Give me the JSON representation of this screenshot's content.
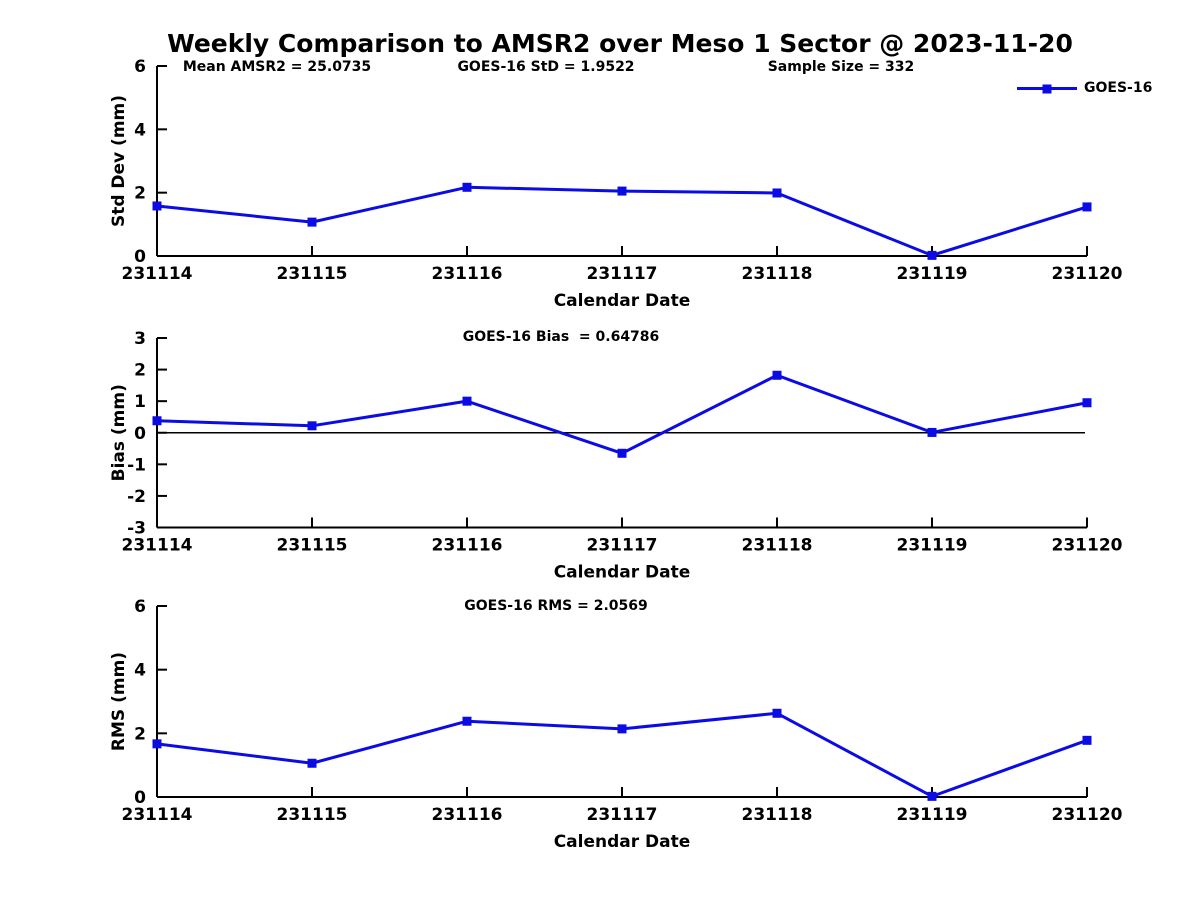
{
  "figure": {
    "title": "Weekly Comparison to AMSR2 over Meso 1 Sector @ 2023-11-20",
    "colors": {
      "line": "#0b0be6",
      "axis": "#000000",
      "zero_line": "#000000",
      "background": "#ffffff"
    }
  },
  "chart_data": [
    {
      "type": "line",
      "xlabel": "Calendar Date",
      "ylabel": "Std Dev (mm)",
      "categories": [
        "231114",
        "231115",
        "231116",
        "231117",
        "231118",
        "231119",
        "231120"
      ],
      "series": [
        {
          "name": "GOES-16",
          "values": [
            1.58,
            1.07,
            2.17,
            2.05,
            1.99,
            0.02,
            1.55
          ]
        }
      ],
      "ylim": [
        0,
        6
      ],
      "yticks": [
        0,
        2,
        4,
        6
      ],
      "grid": false,
      "legend_position": "top-right",
      "annotations": {
        "mean_amsr2": "Mean AMSR2 = 25.0735",
        "goes16_std": "GOES-16 StD = 1.9522",
        "sample_size": "Sample Size = 332"
      }
    },
    {
      "type": "line",
      "xlabel": "Calendar Date",
      "ylabel": "Bias (mm)",
      "categories": [
        "231114",
        "231115",
        "231116",
        "231117",
        "231118",
        "231119",
        "231120"
      ],
      "series": [
        {
          "name": "GOES-16",
          "values": [
            0.38,
            0.22,
            1.0,
            -0.65,
            1.82,
            0.01,
            0.95
          ]
        }
      ],
      "ylim": [
        -3,
        3
      ],
      "yticks": [
        -3,
        -2,
        -1,
        0,
        1,
        2,
        3
      ],
      "zero_line": true,
      "grid": false,
      "annotation": "GOES-16 Bias  = 0.64786"
    },
    {
      "type": "line",
      "xlabel": "Calendar Date",
      "ylabel": "RMS (mm)",
      "categories": [
        "231114",
        "231115",
        "231116",
        "231117",
        "231118",
        "231119",
        "231120"
      ],
      "series": [
        {
          "name": "GOES-16",
          "values": [
            1.67,
            1.06,
            2.38,
            2.14,
            2.63,
            0.02,
            1.78
          ]
        }
      ],
      "ylim": [
        0,
        6
      ],
      "yticks": [
        0,
        2,
        4,
        6
      ],
      "grid": false,
      "annotation": "GOES-16 RMS = 2.0569"
    }
  ]
}
